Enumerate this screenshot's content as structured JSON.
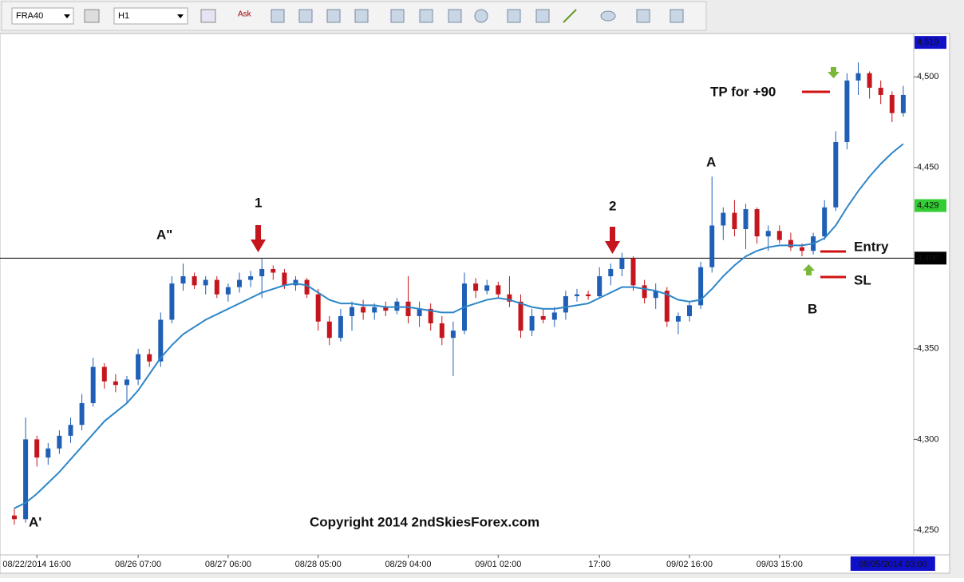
{
  "toolbar": {
    "symbol": "FRA40",
    "timeframe": "H1",
    "quote": "Ask"
  },
  "chart_data": {
    "type": "candlestick",
    "ylim": [
      4236.3,
      4523.9
    ],
    "yticks": [
      {
        "value": 4250,
        "label": "4,250"
      },
      {
        "value": 4300,
        "label": "4,300"
      },
      {
        "value": 4350,
        "label": "4,350"
      },
      {
        "value": 4400,
        "label": "4,400"
      },
      {
        "value": 4450,
        "label": "4,450"
      },
      {
        "value": 4500,
        "label": "4,500"
      }
    ],
    "up_color": "#1f5fb5",
    "down_color": "#c4161c",
    "ma_color": "#2e86c8",
    "categories": [
      null,
      null,
      "08/22/2014 16:00",
      null,
      null,
      null,
      null,
      null,
      null,
      null,
      null,
      "08/26 07:00",
      null,
      null,
      null,
      null,
      null,
      null,
      null,
      "08/27 06:00",
      null,
      null,
      null,
      null,
      null,
      null,
      null,
      "08/28 05:00",
      null,
      null,
      null,
      null,
      null,
      null,
      null,
      "08/29 04:00",
      null,
      null,
      null,
      null,
      null,
      null,
      null,
      "09/01 02:00",
      null,
      null,
      null,
      null,
      null,
      null,
      null,
      null,
      "17:00",
      null,
      null,
      null,
      null,
      null,
      null,
      null,
      "09/02 16:00",
      null,
      null,
      null,
      null,
      null,
      null,
      null,
      "09/03 15:00",
      null,
      null,
      null,
      null,
      null,
      null,
      null,
      null,
      null,
      null,
      null
    ],
    "crosshair_label": "09/05/2014 03:00",
    "candles": [
      [
        4258,
        4262,
        4253,
        4256
      ],
      [
        4256,
        4312,
        4254,
        4300
      ],
      [
        4300,
        4302,
        4285,
        4290
      ],
      [
        4290,
        4298,
        4286,
        4295
      ],
      [
        4295,
        4305,
        4292,
        4302
      ],
      [
        4302,
        4312,
        4298,
        4308
      ],
      [
        4308,
        4325,
        4305,
        4320
      ],
      [
        4320,
        4345,
        4318,
        4340
      ],
      [
        4340,
        4342,
        4328,
        4332
      ],
      [
        4332,
        4336,
        4326,
        4330
      ],
      [
        4330,
        4335,
        4320,
        4333
      ],
      [
        4333,
        4350,
        4330,
        4347
      ],
      [
        4347,
        4350,
        4340,
        4343
      ],
      [
        4343,
        4370,
        4340,
        4366
      ],
      [
        4366,
        4390,
        4364,
        4386
      ],
      [
        4386,
        4397,
        4382,
        4390
      ],
      [
        4390,
        4392,
        4383,
        4385
      ],
      [
        4385,
        4390,
        4380,
        4388
      ],
      [
        4388,
        4390,
        4378,
        4380
      ],
      [
        4380,
        4386,
        4376,
        4384
      ],
      [
        4384,
        4392,
        4381,
        4388
      ],
      [
        4388,
        4393,
        4384,
        4390
      ],
      [
        4390,
        4400,
        4378,
        4394
      ],
      [
        4394,
        4396,
        4388,
        4392
      ],
      [
        4392,
        4394,
        4383,
        4385
      ],
      [
        4385,
        4390,
        4382,
        4388
      ],
      [
        4388,
        4389,
        4378,
        4380
      ],
      [
        4380,
        4383,
        4360,
        4365
      ],
      [
        4365,
        4368,
        4352,
        4356
      ],
      [
        4356,
        4372,
        4354,
        4368
      ],
      [
        4368,
        4376,
        4360,
        4373
      ],
      [
        4373,
        4377,
        4366,
        4370
      ],
      [
        4370,
        4375,
        4366,
        4373
      ],
      [
        4373,
        4376,
        4368,
        4371
      ],
      [
        4371,
        4378,
        4369,
        4376
      ],
      [
        4376,
        4390,
        4364,
        4368
      ],
      [
        4368,
        4376,
        4362,
        4372
      ],
      [
        4372,
        4375,
        4360,
        4364
      ],
      [
        4364,
        4368,
        4352,
        4356
      ],
      [
        4356,
        4365,
        4335,
        4360
      ],
      [
        4360,
        4392,
        4358,
        4386
      ],
      [
        4386,
        4389,
        4378,
        4382
      ],
      [
        4382,
        4388,
        4380,
        4385
      ],
      [
        4385,
        4387,
        4378,
        4380
      ],
      [
        4380,
        4390,
        4373,
        4376
      ],
      [
        4376,
        4380,
        4356,
        4360
      ],
      [
        4360,
        4372,
        4357,
        4368
      ],
      [
        4368,
        4372,
        4364,
        4366
      ],
      [
        4366,
        4373,
        4362,
        4370
      ],
      [
        4370,
        4382,
        4366,
        4379
      ],
      [
        4379,
        4383,
        4376,
        4380
      ],
      [
        4380,
        4382,
        4377,
        4379
      ],
      [
        4379,
        4395,
        4378,
        4390
      ],
      [
        4390,
        4397,
        4385,
        4394
      ],
      [
        4394,
        4403,
        4390,
        4400
      ],
      [
        4400,
        4401,
        4382,
        4385
      ],
      [
        4385,
        4388,
        4375,
        4378
      ],
      [
        4378,
        4386,
        4372,
        4382
      ],
      [
        4382,
        4384,
        4362,
        4365
      ],
      [
        4365,
        4370,
        4358,
        4368
      ],
      [
        4368,
        4376,
        4365,
        4374
      ],
      [
        4374,
        4398,
        4372,
        4395
      ],
      [
        4395,
        4445,
        4392,
        4418
      ],
      [
        4418,
        4428,
        4410,
        4425
      ],
      [
        4425,
        4432,
        4412,
        4416
      ],
      [
        4416,
        4430,
        4405,
        4427
      ],
      [
        4427,
        4428,
        4408,
        4412
      ],
      [
        4412,
        4418,
        4404,
        4415
      ],
      [
        4415,
        4418,
        4408,
        4410
      ],
      [
        4410,
        4414,
        4404,
        4406
      ],
      [
        4406,
        4408,
        4401,
        4404
      ],
      [
        4404,
        4414,
        4402,
        4412
      ],
      [
        4412,
        4432,
        4410,
        4428
      ],
      [
        4428,
        4470,
        4426,
        4464
      ],
      [
        4464,
        4502,
        4460,
        4498
      ],
      [
        4498,
        4508,
        4490,
        4502
      ],
      [
        4502,
        4503,
        4488,
        4494
      ],
      [
        4494,
        4498,
        4485,
        4490
      ],
      [
        4490,
        4492,
        4475,
        4480
      ],
      [
        4480,
        4495,
        4478,
        4490
      ]
    ],
    "ma": [
      4262,
      4265,
      4270,
      4276,
      4282,
      4289,
      4296,
      4303,
      4310,
      4315,
      4320,
      4327,
      4336,
      4345,
      4352,
      4358,
      4362,
      4366,
      4369,
      4372,
      4375,
      4378,
      4381,
      4383,
      4385,
      4386,
      4385,
      4381,
      4377,
      4375,
      4375,
      4374,
      4374,
      4373,
      4373,
      4373,
      4372,
      4371,
      4370,
      4370,
      4373,
      4375,
      4377,
      4378,
      4377,
      4375,
      4373,
      4372,
      4372,
      4373,
      4374,
      4375,
      4378,
      4381,
      4384,
      4384,
      4383,
      4382,
      4380,
      4377,
      4376,
      4377,
      4383,
      4390,
      4396,
      4401,
      4404,
      4406,
      4407,
      4407,
      4407,
      4408,
      4411,
      4418,
      4428,
      4437,
      4445,
      4452,
      4458,
      4463
    ],
    "hline": 4400,
    "price_markers": [
      {
        "value": 4519,
        "label": "4,519",
        "color": "#1010c8"
      },
      {
        "value": 4429,
        "label": "4,429",
        "color": "#33cc33"
      },
      {
        "value": 4400,
        "label": "4,400",
        "color": "#000000"
      }
    ],
    "annotations": [
      "A'",
      "A\"",
      "1",
      "2",
      "A",
      "B",
      "TP for +90",
      "Entry",
      "SL",
      "Copyright 2014 2ndSkiesForex.com"
    ]
  }
}
